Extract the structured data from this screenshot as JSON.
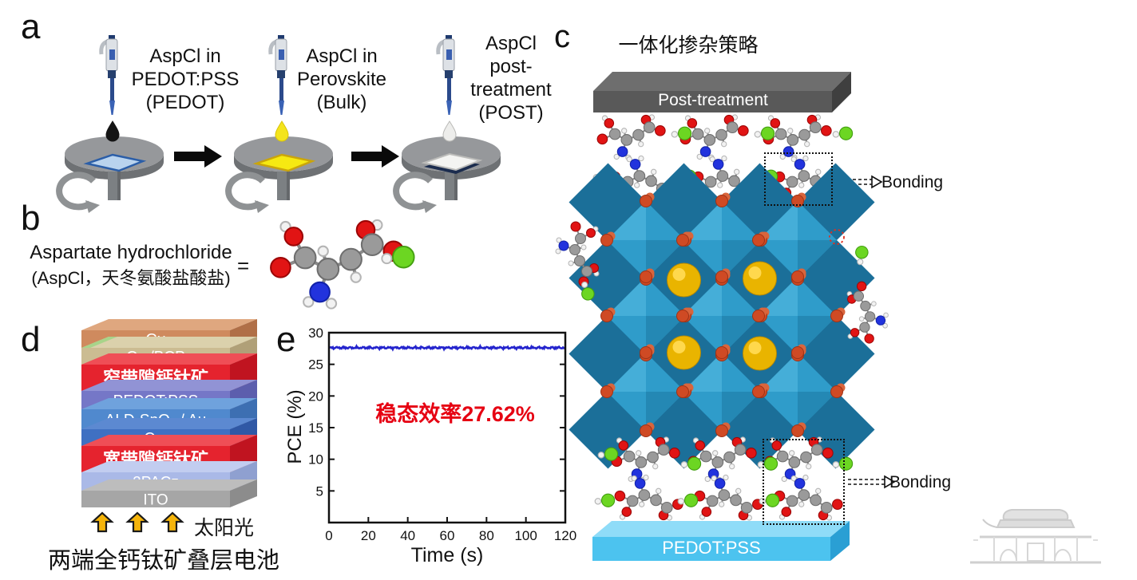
{
  "panels": {
    "a": {
      "label": "a",
      "steps": [
        {
          "lines": [
            "AspCl in",
            "PEDOT:PSS",
            "(PEDOT)"
          ],
          "droplet_color": "#141414",
          "droplet_stroke": "#141414",
          "substrate_fill": "#b9d3ee",
          "substrate_border": "#2b5ea8"
        },
        {
          "lines": [
            "AspCl in",
            "Perovskite",
            "(Bulk)"
          ],
          "droplet_color": "#f4e41c",
          "droplet_stroke": "#d8c308",
          "substrate_fill": "#f6e912",
          "substrate_border": "#caa50b"
        },
        {
          "lines": [
            "AspCl",
            "post-",
            "treatment",
            "(POST)"
          ],
          "droplet_color": "#ededeb",
          "droplet_stroke": "#b9b9b6",
          "substrate_fill": "#f4f4f2",
          "substrate_border": "#bcbcba",
          "substrate_base": "#1b2c4e"
        }
      ]
    },
    "b": {
      "label": "b",
      "line1": "Aspartate hydrochloride",
      "line2": "(AspCl，天冬氨酸盐酸盐)",
      "equals": "="
    },
    "c": {
      "label": "c",
      "title": "一体化掺杂策略",
      "top_slab_label": "Post-treatment",
      "bottom_slab_label": "PEDOT:PSS",
      "bonding_top": "Bonding",
      "bonding_bottom": "Bonding",
      "colors": {
        "octahedron": "#2f9cca",
        "halide": "#cf4a24",
        "cation": "#e9b400",
        "top_slab": "#595959",
        "bottom_slab": "#4cc3ef"
      }
    },
    "d": {
      "label": "d",
      "caption": "两端全钙钛矿叠层电池",
      "sunlight_label": "太阳光",
      "layers": [
        {
          "label": "Cu",
          "front": "#cf8a5e",
          "top": "#dfa77f",
          "side": "#b06f47",
          "h": 22,
          "fs": 20,
          "bold": false
        },
        {
          "label": "C₆₀/BCP",
          "front": "#cbbc92",
          "top": "#dbd1ac",
          "side": "#b0a078",
          "h": 21,
          "fs": 19,
          "bold": false,
          "edge_accent": "#a8d48a"
        },
        {
          "label": "窄带隙钙钛矿",
          "front": "#e5232e",
          "top": "#ef4e56",
          "side": "#c01420",
          "h": 33,
          "fs": 22,
          "bold": true
        },
        {
          "label": "PEDOT:PSS",
          "front": "#7577c7",
          "top": "#9193d5",
          "side": "#5c5ead",
          "h": 23,
          "fs": 19,
          "bold": false
        },
        {
          "label": "ALD-SnO₂ / Au",
          "front": "#5089ce",
          "top": "#6fa2dd",
          "side": "#3d6fb2",
          "h": 25,
          "fs": 19,
          "bold": false
        },
        {
          "label": "C₆₀",
          "front": "#3f70c2",
          "top": "#5c89d1",
          "side": "#3058a5",
          "h": 21,
          "fs": 19,
          "bold": false
        },
        {
          "label": "宽带隙钙钛矿",
          "front": "#e5232e",
          "top": "#ef4e56",
          "side": "#c01420",
          "h": 33,
          "fs": 22,
          "bold": true
        },
        {
          "label": "2PACz",
          "front": "#aab9e7",
          "top": "#c2cdf0",
          "side": "#8fa0d0",
          "h": 23,
          "fs": 19,
          "bold": false
        },
        {
          "label": "ITO",
          "front": "#a6a6a6",
          "top": "#bdbdbd",
          "side": "#8c8c8c",
          "h": 21,
          "fs": 19,
          "bold": false
        }
      ]
    },
    "e": {
      "label": "e"
    }
  },
  "chart_data": {
    "type": "line",
    "title": "",
    "xlabel": "Time (s)",
    "ylabel": "PCE (%)",
    "xlim": [
      0,
      120
    ],
    "ylim": [
      0,
      30
    ],
    "xticks": [
      0,
      20,
      40,
      60,
      80,
      100,
      120
    ],
    "yticks": [
      5,
      10,
      15,
      20,
      25,
      30
    ],
    "grid": false,
    "legend": false,
    "series": [
      {
        "name": "PCE",
        "color": "#2424cd",
        "steady_value": 27.62,
        "noise_amplitude": 0.18,
        "x_start": 0,
        "x_end": 120
      }
    ],
    "annotation": {
      "text": "稳态效率27.62%",
      "color": "#e60012"
    }
  },
  "watermark_icon": "pavilion-building"
}
